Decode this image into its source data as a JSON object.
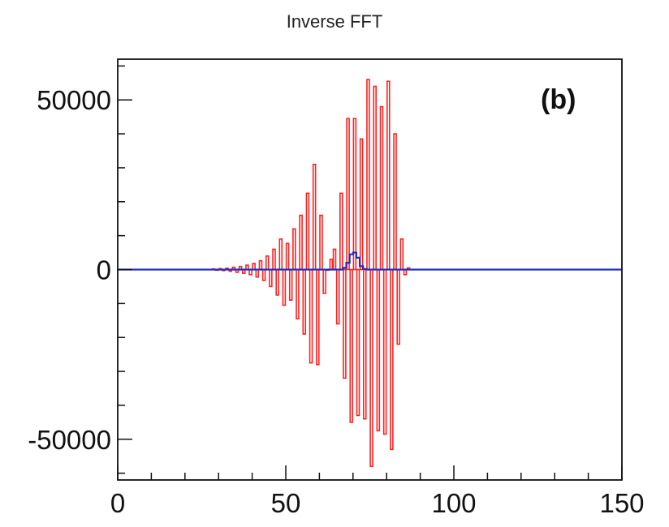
{
  "chart_data": {
    "type": "bar",
    "title": "Inverse FFT",
    "annotation": "(b)",
    "xlabel": "",
    "ylabel": "",
    "xlim": [
      0,
      150
    ],
    "ylim": [
      -62000,
      62000
    ],
    "x_ticks": [
      0,
      50,
      100,
      150
    ],
    "y_ticks": [
      -50000,
      0,
      50000
    ],
    "x_tick_labels": [
      "0",
      "50",
      "100",
      "150"
    ],
    "y_tick_labels": [
      "-50000",
      "0",
      "50000"
    ],
    "grid": false,
    "series": [
      {
        "style": "hollow-bars",
        "color": "#ff2020",
        "bin_width": 1,
        "x": [
          28,
          29,
          30,
          31,
          32,
          33,
          34,
          35,
          36,
          37,
          38,
          39,
          40,
          41,
          42,
          43,
          44,
          45,
          46,
          47,
          48,
          49,
          50,
          51,
          52,
          53,
          54,
          55,
          56,
          57,
          58,
          59,
          60,
          61,
          62,
          63,
          64,
          65,
          66,
          67,
          68,
          69,
          70,
          71,
          72,
          73,
          74,
          75,
          76,
          77,
          78,
          79,
          80,
          81,
          82,
          83,
          84,
          85,
          86
        ],
        "values": [
          200,
          -200,
          300,
          -300,
          400,
          -500,
          700,
          -800,
          900,
          -1100,
          1300,
          -1500,
          1800,
          -2200,
          2600,
          -3200,
          4000,
          -5000,
          6000,
          -7500,
          9000,
          -10500,
          7700,
          -9000,
          12000,
          -14500,
          16000,
          -19000,
          22500,
          -27500,
          31000,
          -28000,
          16000,
          -7000,
          0,
          3000,
          6000,
          -16000,
          22500,
          -32000,
          44500,
          -45000,
          44500,
          -43000,
          38500,
          -44000,
          56000,
          -58000,
          54000,
          -47500,
          48000,
          -48500,
          55500,
          -53000,
          40000,
          -22000,
          9000,
          -1500,
          500
        ]
      },
      {
        "style": "step-line",
        "color": "#1f2fbf",
        "x": [
          0,
          66,
          67,
          68,
          69,
          70,
          71,
          72,
          73,
          74,
          150
        ],
        "values": [
          0,
          0,
          500,
          2000,
          4500,
          5000,
          3500,
          1000,
          200,
          0,
          0
        ]
      }
    ]
  }
}
